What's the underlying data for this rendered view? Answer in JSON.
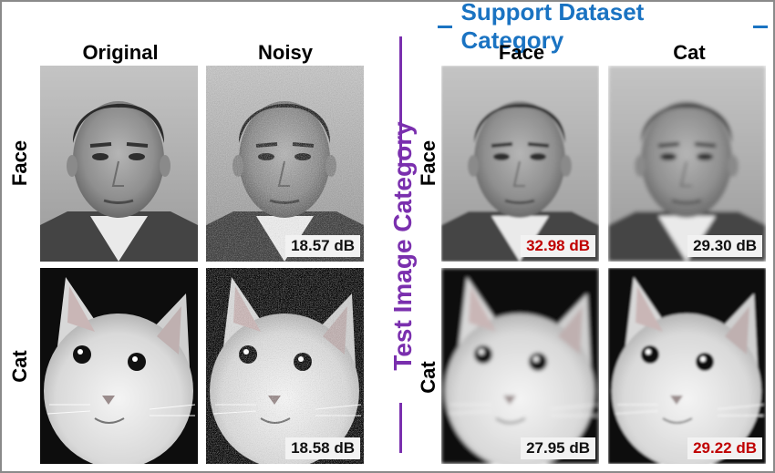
{
  "columns": {
    "original": "Original",
    "noisy": "Noisy",
    "support_face": "Face",
    "support_cat": "Cat"
  },
  "rows": {
    "face": "Face",
    "cat": "Cat"
  },
  "support_title": "Support Dataset Category",
  "test_title": "Test Image Category",
  "psnr": {
    "face_noisy": "18.57 dB",
    "cat_noisy": "18.58 dB",
    "face_support_face": "32.98 dB",
    "face_support_cat": "29.30 dB",
    "cat_support_face": "27.95 dB",
    "cat_support_cat": "29.22 dB"
  },
  "colors": {
    "support_accent": "#1a73c2",
    "test_accent": "#7a2fae",
    "best_psnr": "#c00000"
  }
}
